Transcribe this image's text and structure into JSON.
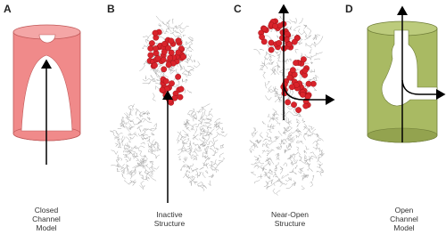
{
  "panels": [
    {
      "letter": "A",
      "caption": [
        "Closed",
        "Channel",
        "Model"
      ]
    },
    {
      "letter": "B",
      "caption": [
        "Inactive",
        "Structure"
      ]
    },
    {
      "letter": "C",
      "caption": [
        "Near-Open",
        "Structure"
      ]
    },
    {
      "letter": "D",
      "caption": [
        "Open",
        "Channel",
        "Model"
      ]
    }
  ]
}
